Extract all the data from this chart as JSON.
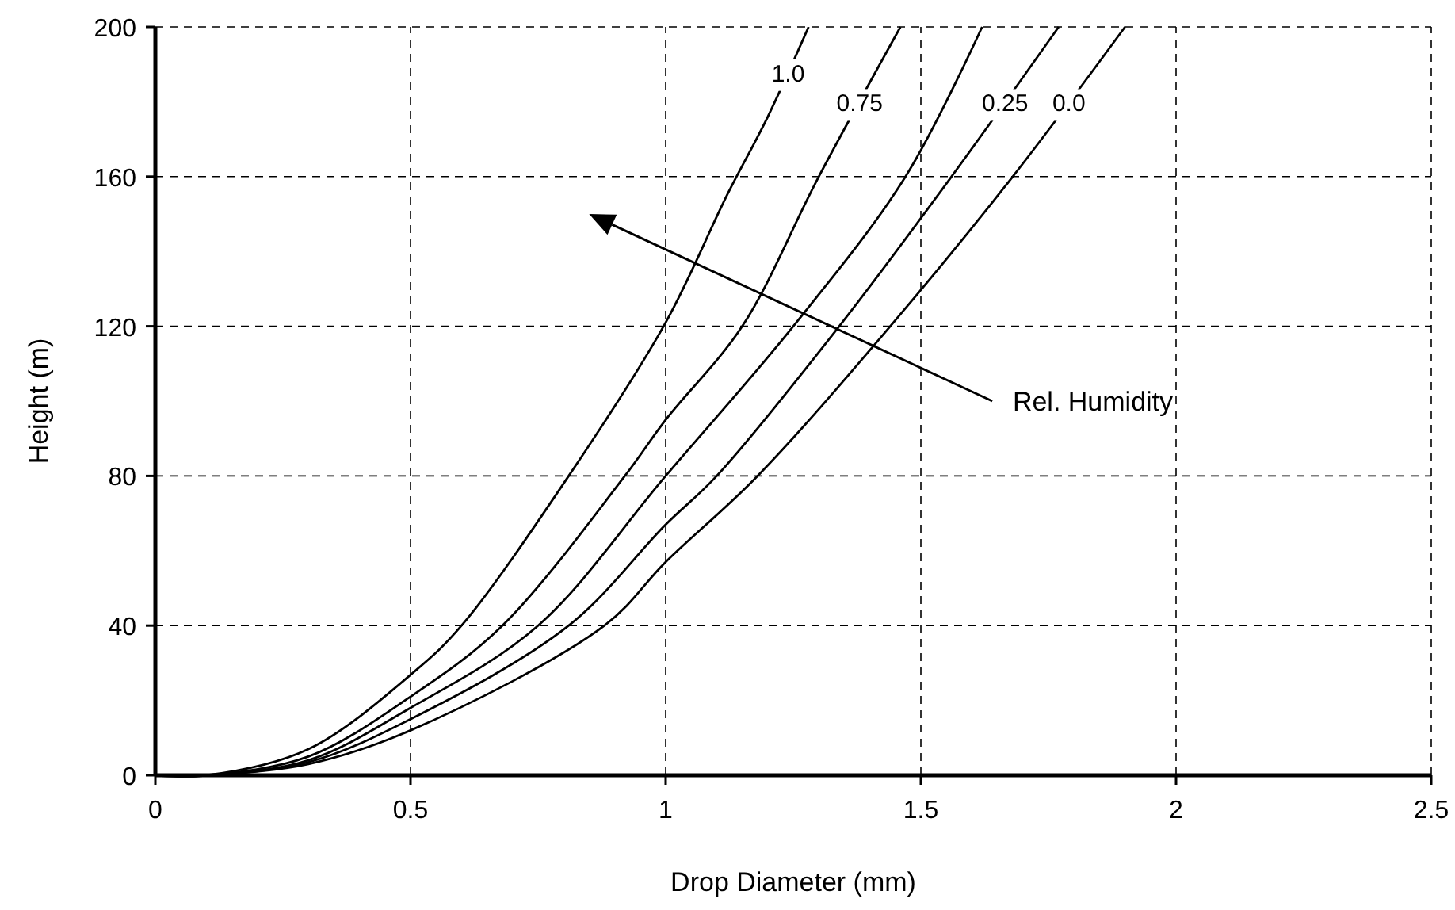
{
  "chart_data": {
    "type": "line",
    "xlabel": "Drop Diameter (mm)",
    "ylabel": "Height (m)",
    "xlim": [
      0,
      2.5
    ],
    "ylim": [
      0,
      200
    ],
    "xticks": [
      0,
      0.5,
      1,
      1.5,
      2,
      2.5
    ],
    "yticks": [
      0,
      40,
      80,
      120,
      160,
      200
    ],
    "grid": true,
    "marker": "none",
    "line_style": "solid",
    "annotations": [
      "Rel. Humidity"
    ],
    "series": [
      {
        "name": "1.0",
        "color": "#000000",
        "x": [
          0,
          0.1,
          0.3,
          0.51,
          0.6,
          0.81,
          1.0,
          1.12,
          1.2,
          1.28
        ],
        "values": [
          0,
          0,
          7,
          28,
          40,
          80,
          121,
          155,
          176,
          200
        ]
      },
      {
        "name": "0.75",
        "color": "#000000",
        "x": [
          0,
          0.1,
          0.3,
          0.5,
          0.68,
          0.92,
          1.0,
          1.15,
          1.3,
          1.46
        ],
        "values": [
          0,
          0,
          5,
          21,
          40,
          80,
          95,
          120,
          160,
          200
        ]
      },
      {
        "color": "#000000",
        "x": [
          0,
          0.1,
          0.3,
          0.5,
          0.75,
          1.0,
          1.25,
          1.47,
          1.62
        ],
        "values": [
          0,
          0,
          4,
          18,
          40,
          80,
          120,
          160,
          200
        ]
      },
      {
        "name": "0.25",
        "color": "#000000",
        "x": [
          0,
          0.1,
          0.3,
          0.5,
          0.81,
          1.0,
          1.1,
          1.34,
          1.56,
          1.77
        ],
        "values": [
          0,
          0,
          3.5,
          15,
          40,
          67,
          80,
          120,
          160,
          200
        ]
      },
      {
        "name": "0.0",
        "color": "#000000",
        "x": [
          0,
          0.1,
          0.3,
          0.5,
          0.88,
          1.0,
          1.18,
          1.44,
          1.68,
          1.9
        ],
        "values": [
          0,
          0,
          3,
          12,
          40,
          57,
          80,
          120,
          160,
          200
        ]
      }
    ]
  }
}
